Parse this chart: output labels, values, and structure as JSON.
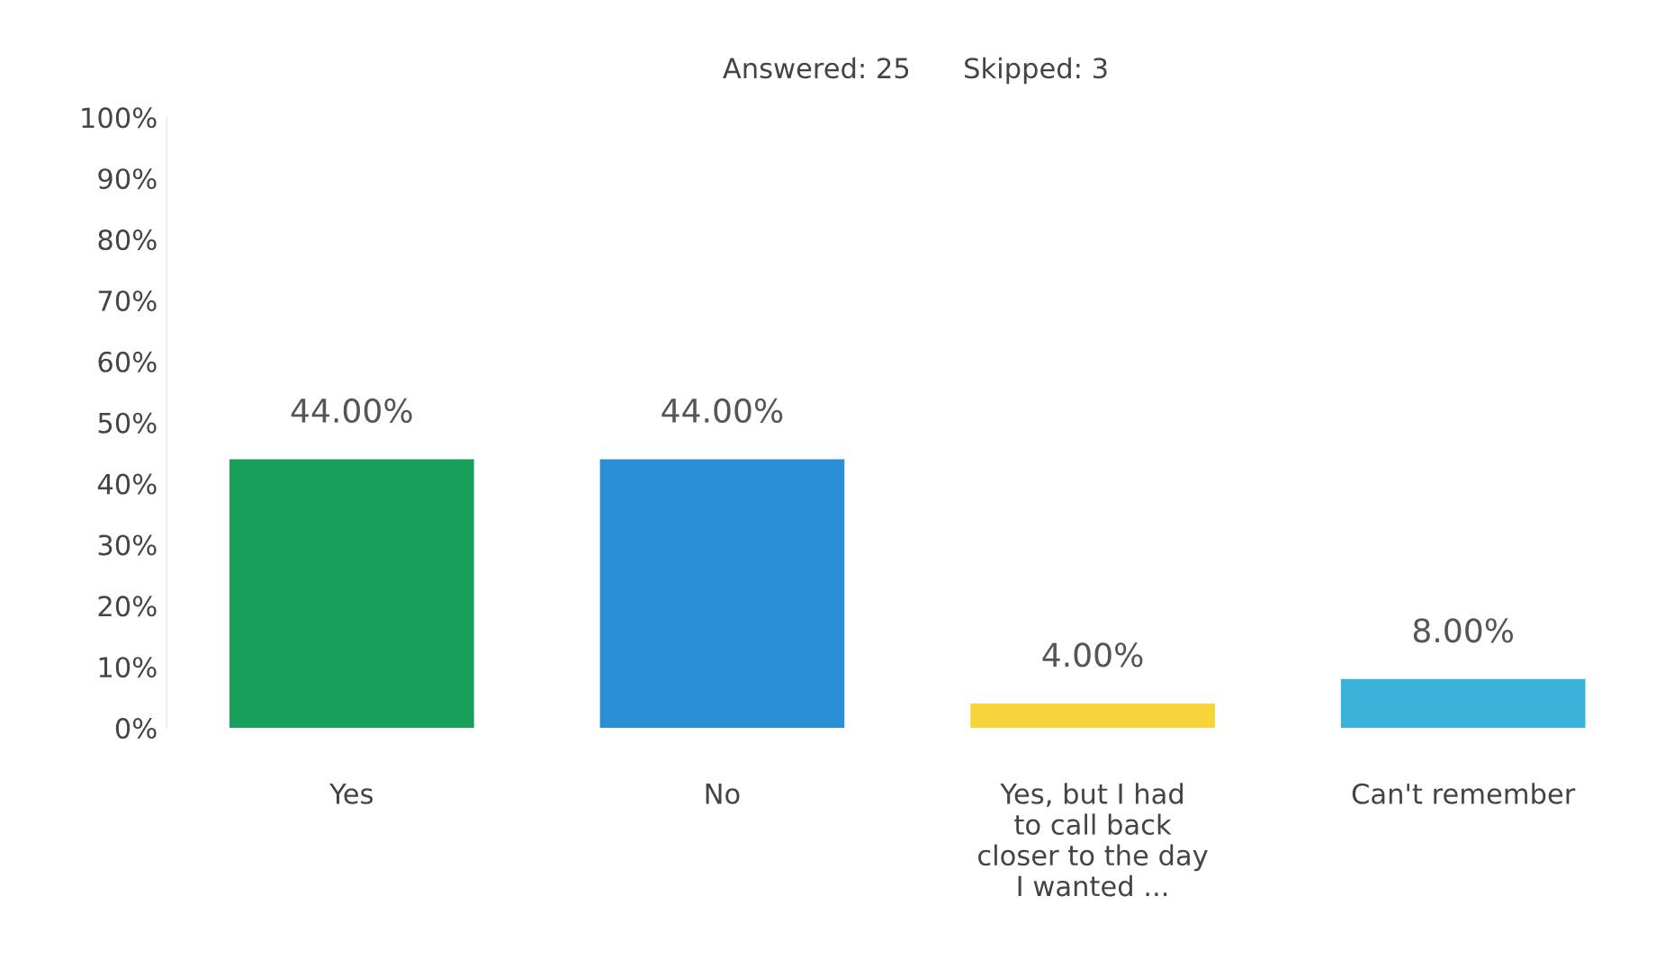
{
  "chart_data": {
    "type": "bar",
    "title": "Answered: 25      Skipped: 3",
    "categories": [
      "Yes",
      "No",
      "Yes, but I had\nto call back\ncloser to the day\nI wanted ...",
      "Can't remember"
    ],
    "values": [
      44,
      44,
      4,
      8
    ],
    "colors": [
      "#17a05a",
      "#2b8fd6",
      "#f7d43a",
      "#3bb2d9"
    ],
    "value_labels": [
      "44.00%",
      "44.00%",
      "4.00%",
      "8.00%"
    ],
    "ylim": [
      0,
      100
    ],
    "yticks": [
      {
        "value": 0,
        "label": "0%"
      },
      {
        "value": 10,
        "label": "10%"
      },
      {
        "value": 20,
        "label": "20%"
      },
      {
        "value": 30,
        "label": "30%"
      },
      {
        "value": 40,
        "label": "40%"
      },
      {
        "value": 50,
        "label": "50%"
      },
      {
        "value": 60,
        "label": "60%"
      },
      {
        "value": 70,
        "label": "70%"
      },
      {
        "value": 80,
        "label": "80%"
      },
      {
        "value": 90,
        "label": "90%"
      },
      {
        "value": 100,
        "label": "100%"
      }
    ],
    "grid": false,
    "legend": false
  }
}
